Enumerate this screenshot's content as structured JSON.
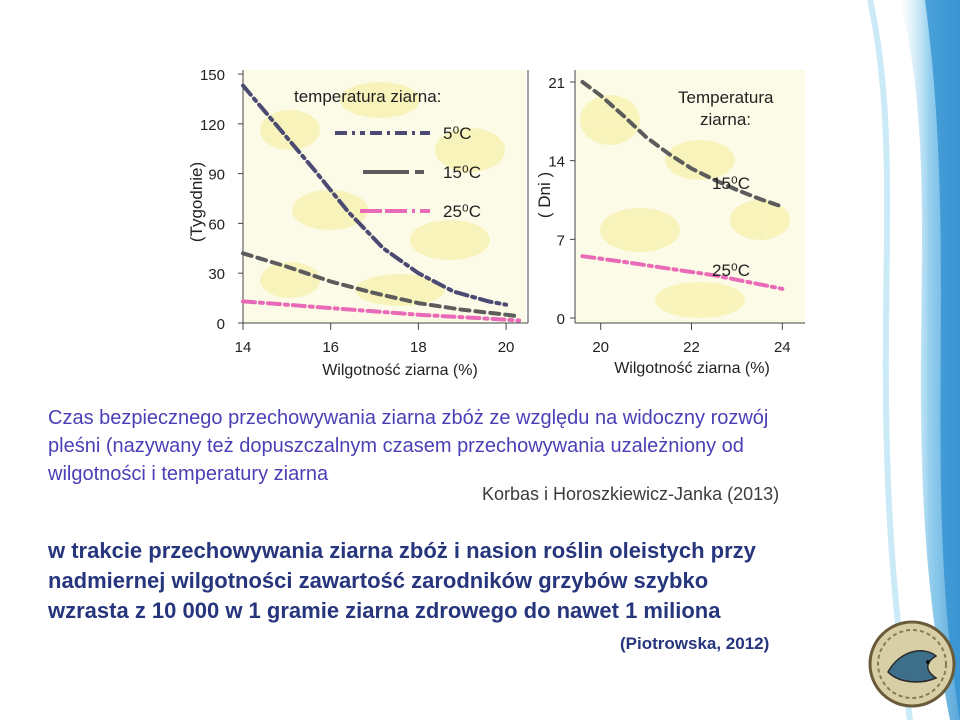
{
  "chart_data": [
    {
      "type": "line",
      "ylabel": "(Tygodnie)",
      "xlabel": "Wilgotność ziarna  (%)",
      "legend_title": "temperatura ziarna:",
      "xlim": [
        14,
        20.5
      ],
      "ylim": [
        0,
        150
      ],
      "xticks": [
        "14",
        "16",
        "18",
        "20"
      ],
      "yticks": [
        "0",
        "30",
        "60",
        "90",
        "120",
        "150"
      ],
      "series": [
        {
          "name": "5⁰C",
          "color": "#4b4a73",
          "style": "dashdot",
          "points": [
            [
              14,
              143
            ],
            [
              14.8,
              118
            ],
            [
              15.6,
              93
            ],
            [
              16.4,
              67
            ],
            [
              17.2,
              45
            ],
            [
              18,
              30
            ],
            [
              18.8,
              19
            ],
            [
              19.6,
              13
            ],
            [
              20,
              11
            ]
          ]
        },
        {
          "name": "15⁰C",
          "color": "#5c5c5c",
          "style": "dashed",
          "points": [
            [
              14,
              42
            ],
            [
              15,
              34
            ],
            [
              16,
              25
            ],
            [
              17,
              18
            ],
            [
              18,
              12
            ],
            [
              19,
              8
            ],
            [
              20,
              5
            ],
            [
              20.3,
              4
            ]
          ]
        },
        {
          "name": "25⁰C",
          "color": "#e96bb8",
          "style": "dashdot",
          "points": [
            [
              14,
              13
            ],
            [
              15,
              11
            ],
            [
              16,
              9
            ],
            [
              17,
              7
            ],
            [
              18,
              5
            ],
            [
              19,
              3.5
            ],
            [
              20,
              2
            ],
            [
              20.3,
              1.5
            ]
          ]
        }
      ]
    },
    {
      "type": "line",
      "ylabel": "( Dni )",
      "xlabel": "Wilgotność ziarna  (%)",
      "legend_title": "Temperatura ziarna:",
      "xlim": [
        19.5,
        24.5
      ],
      "ylim": [
        0,
        21
      ],
      "xticks": [
        "20",
        "22",
        "24"
      ],
      "yticks": [
        "0",
        "7",
        "14",
        "21"
      ],
      "series": [
        {
          "name": "15⁰C",
          "color": "#5c5c5c",
          "style": "dashed",
          "points": [
            [
              19.6,
              21
            ],
            [
              20,
              19.8
            ],
            [
              20.5,
              18
            ],
            [
              21,
              16.1
            ],
            [
              21.5,
              14.6
            ],
            [
              22,
              13.3
            ],
            [
              22.5,
              12.3
            ],
            [
              23,
              11.4
            ],
            [
              23.5,
              10.6
            ],
            [
              24,
              9.9
            ]
          ]
        },
        {
          "name": "25⁰C",
          "color": "#e96bb8",
          "style": "dashdot",
          "points": [
            [
              19.6,
              5.5
            ],
            [
              20.5,
              5.0
            ],
            [
              21.5,
              4.4
            ],
            [
              22.5,
              3.8
            ],
            [
              23.5,
              3.0
            ],
            [
              24,
              2.6
            ]
          ]
        }
      ]
    }
  ],
  "text": {
    "caption_line1": "Czas bezpiecznego przechowywania ziarna zbóż ze względu na widoczny rozwój",
    "caption_line2": "pleśni (nazywany też dopuszczalnym czasem przechowywania uzależniony od",
    "caption_line3": "wilgotności i temperatury ziarna",
    "citation1": "Korbas i Horoszkiewicz-Janka (2013)",
    "para_line1": "w trakcie przechowywania ziarna zbóż i nasion roślin oleistych przy",
    "para_line2": "nadmiernej wilgotności zawartość zarodników grzybów szybko",
    "para_line3": "wzrasta z 10 000 w 1 gramie ziarna zdrowego do nawet 1 miliona",
    "citation2": "(Piotrowska, 2012)"
  },
  "colors": {
    "caption": "#4a3fb5",
    "paragraph": "#26357c",
    "deco_blue": "#2f8fd0"
  }
}
